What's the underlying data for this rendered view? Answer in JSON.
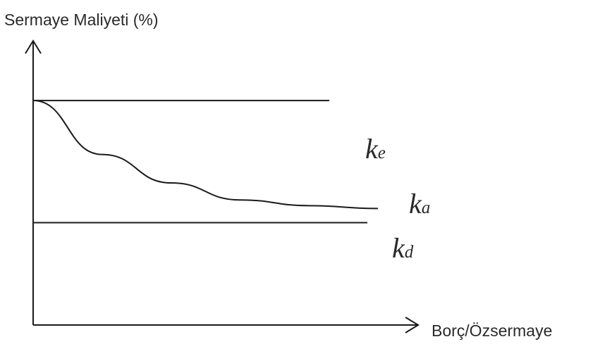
{
  "chart_data": {
    "type": "line",
    "title": "",
    "ylabel": "Sermaye Maliyeti (%)",
    "xlabel": "Borç/Özsermaye",
    "grid": false,
    "ticks": false,
    "series": [
      {
        "name": "ke",
        "label_letter": "k",
        "label_sub": "e",
        "shape": "flat",
        "values": [
          0.79,
          0.79
        ]
      },
      {
        "name": "ka",
        "label_letter": "k",
        "label_sub": "a",
        "shape": "decreasing curve",
        "values": [
          0.79,
          0.6,
          0.5,
          0.44,
          0.42,
          0.41
        ]
      },
      {
        "name": "kd",
        "label_letter": "k",
        "label_sub": "d",
        "shape": "flat",
        "values": [
          0.36,
          0.36
        ]
      }
    ],
    "colors": {
      "line": "#1a1a1a",
      "text": "#2a2a2a"
    }
  }
}
